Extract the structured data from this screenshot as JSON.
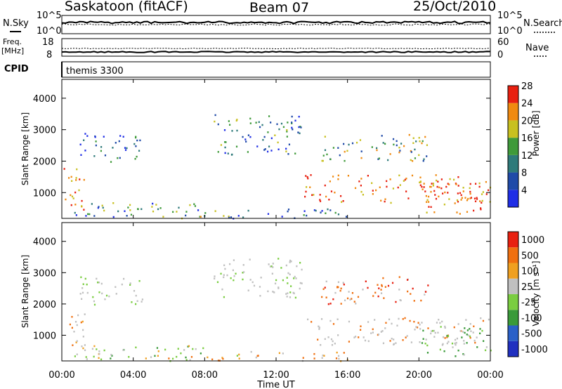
{
  "header": {
    "station": "Saskatoon (fitACF)",
    "beam": "Beam 07",
    "date": "25/Oct/2010"
  },
  "panels": {
    "nsky_label": "N.Sky",
    "nsky_ticks": [
      "10^5",
      "10^0"
    ],
    "nsearch_label": "N.Search",
    "nsearch_ticks": [
      "10^5",
      "10^0"
    ],
    "freq_label": "Freq.",
    "freq_unit": "[MHz]",
    "freq_ticks": [
      "18",
      "8"
    ],
    "nave_label": "Nave",
    "nave_ticks": [
      "60",
      "0"
    ],
    "cpid_label": "CPID",
    "cpid_value": "themis 3300"
  },
  "chart_data": [
    {
      "type": "heatmap",
      "name": "power",
      "ylabel": "Slant Range [km]",
      "yticks": [
        "1000",
        "2000",
        "3000",
        "4000"
      ],
      "ylim": [
        180,
        4600
      ],
      "colorbar_label": "Power [dB]",
      "colorbar_ticks": [
        "4",
        "8",
        "12",
        "16",
        "20",
        "24",
        "28"
      ],
      "colorbar_colors": [
        "#1f2ee6",
        "#1f4aa8",
        "#2e7a7a",
        "#3f9a3a",
        "#c8c020",
        "#f08a10",
        "#e82010"
      ]
    },
    {
      "type": "heatmap",
      "name": "velocity",
      "ylabel": "Slant Range [km]",
      "yticks": [
        "1000",
        "2000",
        "3000",
        "4000"
      ],
      "ylim": [
        180,
        4600
      ],
      "colorbar_label": "Velocity [m s⁻¹]",
      "colorbar_ticks": [
        "1000",
        "500",
        "100",
        "25",
        "-25",
        "-100",
        "-500",
        "-1000"
      ],
      "colorbar_colors": [
        "#2030c0",
        "#2a60c8",
        "#3a9a3a",
        "#7acd40",
        "#c0c0c0",
        "#f0a020",
        "#f07010",
        "#e82010"
      ]
    }
  ],
  "time_axis": {
    "label": "Time UT",
    "ticks": [
      "00:00",
      "04:00",
      "08:00",
      "12:00",
      "16:00",
      "20:00",
      "00:00"
    ]
  }
}
